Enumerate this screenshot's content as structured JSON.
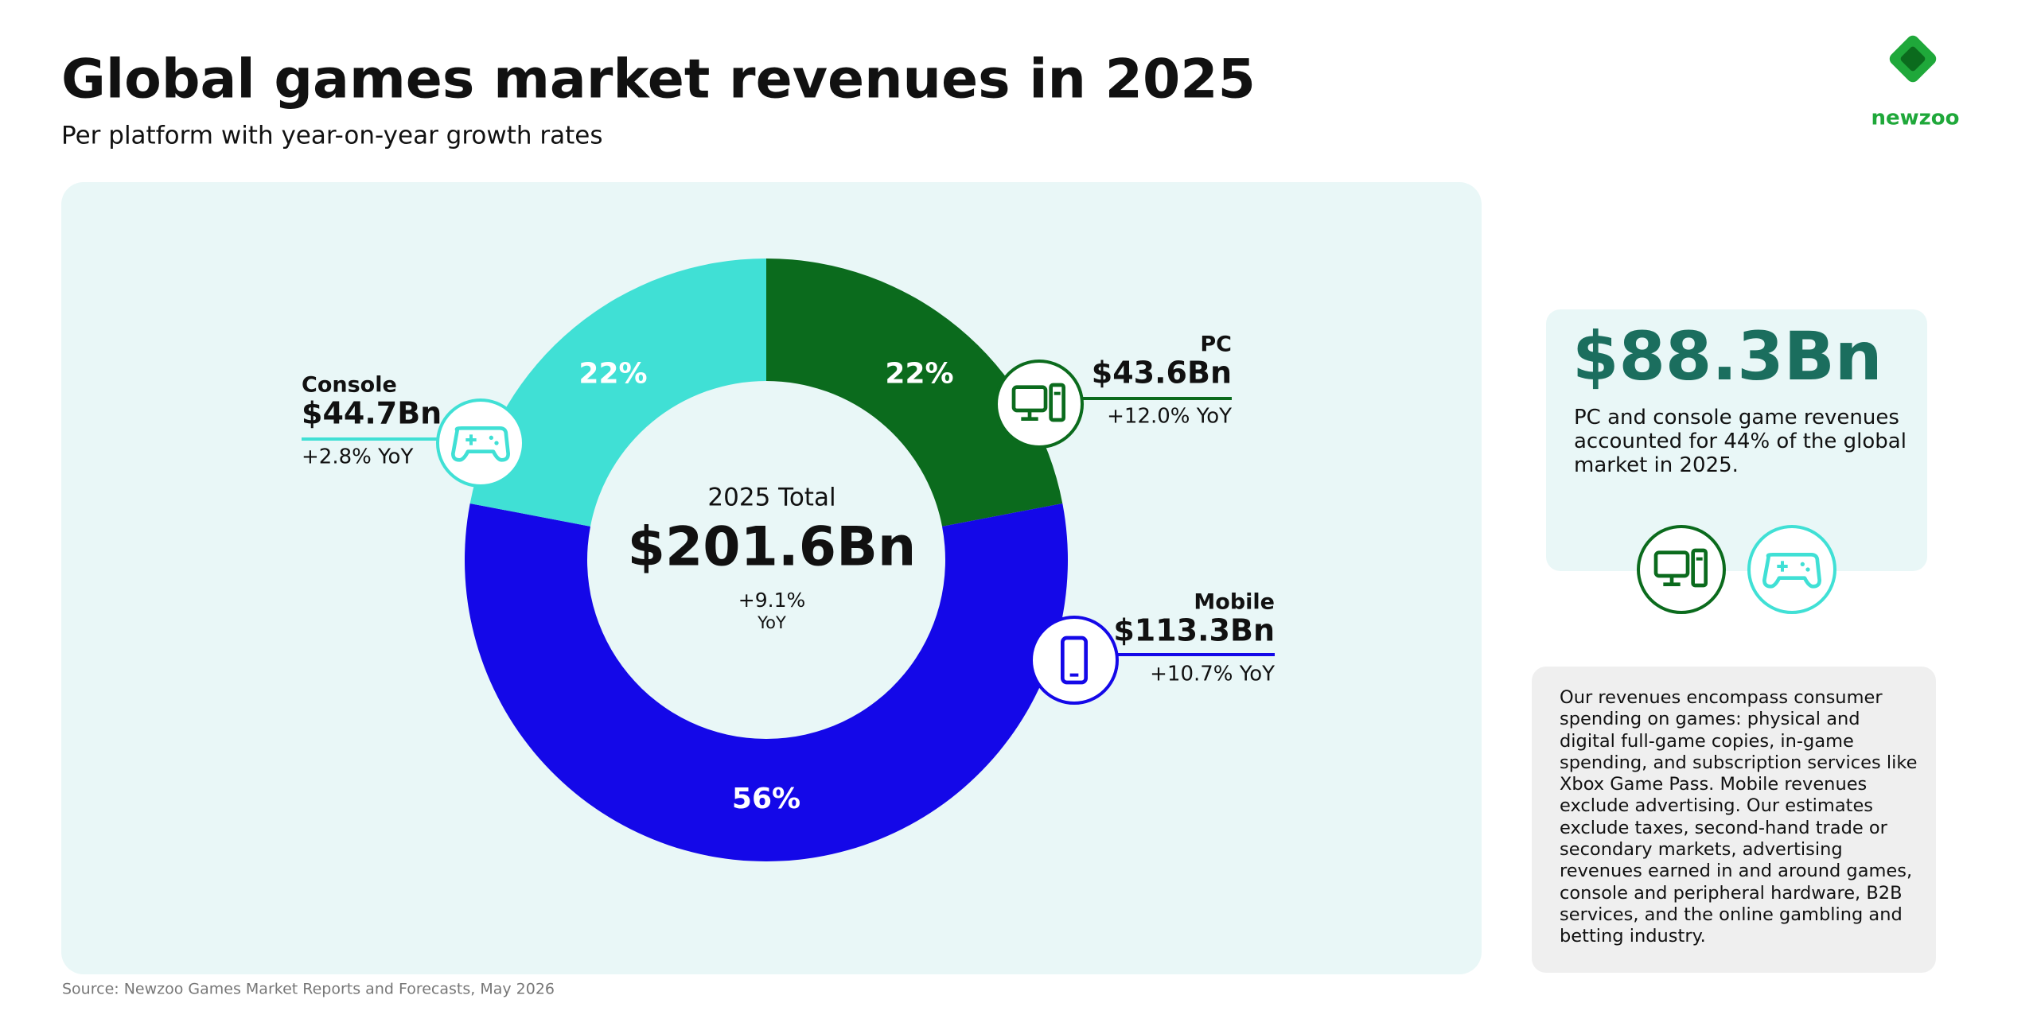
{
  "chart_data": {
    "type": "donut",
    "title": "Global games market revenues in 2025",
    "subtitle": "Per platform with year-on-year growth rates",
    "categories": [
      "PC",
      "Mobile",
      "Console"
    ],
    "values": [
      22,
      56,
      22
    ],
    "value_labels": [
      "22%",
      "56%",
      "22%"
    ],
    "revenue_labels": [
      "$43.6Bn",
      "$113.3Bn",
      "$44.7Bn"
    ],
    "growth_labels": [
      "+12.0% YoY",
      "+10.7% YoY",
      "+2.8% YoY"
    ],
    "colors": [
      "#0b6b1d",
      "#1408e8",
      "#40e0d5"
    ],
    "center_title": "2025 Total",
    "center_value": "$201.6Bn",
    "center_growth": "+9.1%",
    "center_growth_unit": "YoY",
    "source": "Source: Newzoo Games Market Reports and Forecasts, May 2026"
  },
  "highlight": {
    "value": "$88.3Bn",
    "text": "PC and console game revenues accounted for 44% of the global market in 2025."
  },
  "note": "Our revenues encompass consumer spending on games: physical and digital full-game copies, in-game spending, and subscription services like Xbox Game Pass. Mobile revenues exclude advertising. Our estimates exclude taxes, second-hand trade or secondary markets, advertising revenues earned in and around games, console and peripheral hardware, B2B services, and the online gambling and betting industry.",
  "logo": "newzoo"
}
